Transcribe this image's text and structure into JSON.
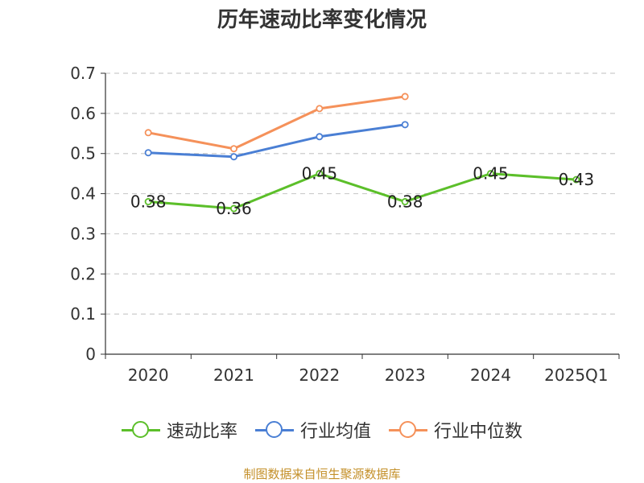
{
  "title": "历年速动比率变化情况",
  "source": "制图数据来自恒生聚源数据库",
  "chart_data": {
    "type": "line",
    "title": "历年速动比率变化情况",
    "categories": [
      "2020",
      "2021",
      "2022",
      "2023",
      "2024",
      "2025Q1"
    ],
    "y_ticks": [
      "0",
      "0.1",
      "0.2",
      "0.3",
      "0.4",
      "0.5",
      "0.6",
      "0.7"
    ],
    "ylim": [
      0,
      0.7
    ],
    "grid": "dashed-horizontal",
    "legend_position": "bottom",
    "series": [
      {
        "name": "速动比率",
        "color": "#5cbf2a",
        "values": [
          0.38,
          0.363,
          0.45,
          0.38,
          0.45,
          0.435
        ],
        "labels": [
          "0.38",
          "0.36",
          "0.45",
          "0.38",
          "0.45",
          "0.43"
        ]
      },
      {
        "name": "行业均值",
        "color": "#4a7fd4",
        "values": [
          0.502,
          0.492,
          0.542,
          0.572,
          null,
          null
        ]
      },
      {
        "name": "行业中位数",
        "color": "#f5915a",
        "values": [
          0.552,
          0.512,
          0.612,
          0.642,
          null,
          null
        ]
      }
    ]
  }
}
